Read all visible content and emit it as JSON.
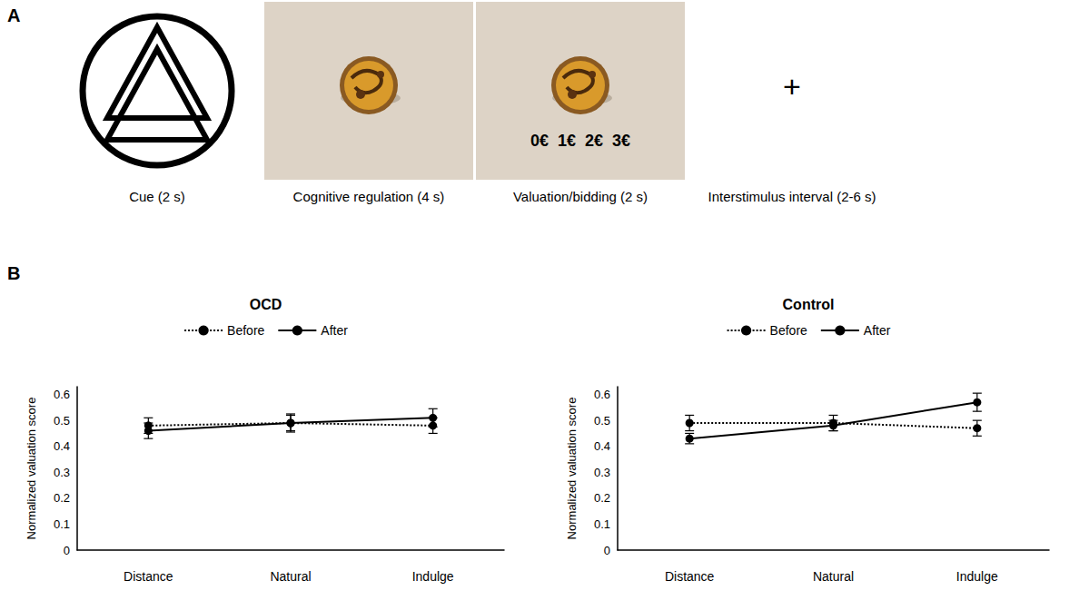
{
  "panel_a": {
    "letter": "A",
    "frames": [
      {
        "caption": "Cue (2 s)"
      },
      {
        "caption": "Cognitive regulation (4 s)"
      },
      {
        "caption": "Valuation/bidding (2 s)"
      },
      {
        "caption": "Interstimulus interval (2-6 s)"
      }
    ],
    "bid_options": [
      "0€",
      "1€",
      "2€",
      "3€"
    ],
    "fixation": "+"
  },
  "panel_b": {
    "letter": "B"
  },
  "chart_data": [
    {
      "type": "line",
      "title": "OCD",
      "ylabel": "Normalized valuation score",
      "categories": [
        "Distance",
        "Natural",
        "Indulge"
      ],
      "series": [
        {
          "name": "Before",
          "color": "#000000",
          "line_style": "dotted",
          "marker": "circle",
          "values": [
            0.48,
            0.49,
            0.48
          ],
          "errors": [
            0.03,
            0.03,
            0.03
          ]
        },
        {
          "name": "After",
          "color": "#000000",
          "line_style": "solid",
          "marker": "circle",
          "values": [
            0.46,
            0.49,
            0.51
          ],
          "errors": [
            0.03,
            0.035,
            0.035
          ]
        }
      ],
      "ylim": [
        0,
        0.63
      ],
      "yticks": [
        0,
        0.1,
        0.2,
        0.3,
        0.4,
        0.5,
        0.6
      ],
      "grid": false,
      "legend": "top"
    },
    {
      "type": "line",
      "title": "Control",
      "ylabel": "Normalized valuation score",
      "categories": [
        "Distance",
        "Natural",
        "Indulge"
      ],
      "series": [
        {
          "name": "Before",
          "color": "#000000",
          "line_style": "dotted",
          "marker": "circle",
          "values": [
            0.49,
            0.49,
            0.47
          ],
          "errors": [
            0.03,
            0.03,
            0.03
          ]
        },
        {
          "name": "After",
          "color": "#000000",
          "line_style": "solid",
          "marker": "circle",
          "values": [
            0.43,
            0.48,
            0.57
          ],
          "errors": [
            0.02,
            0.02,
            0.035
          ]
        }
      ],
      "ylim": [
        0,
        0.63
      ],
      "yticks": [
        0,
        0.1,
        0.2,
        0.3,
        0.4,
        0.5,
        0.6
      ],
      "grid": false,
      "legend": "top"
    }
  ]
}
